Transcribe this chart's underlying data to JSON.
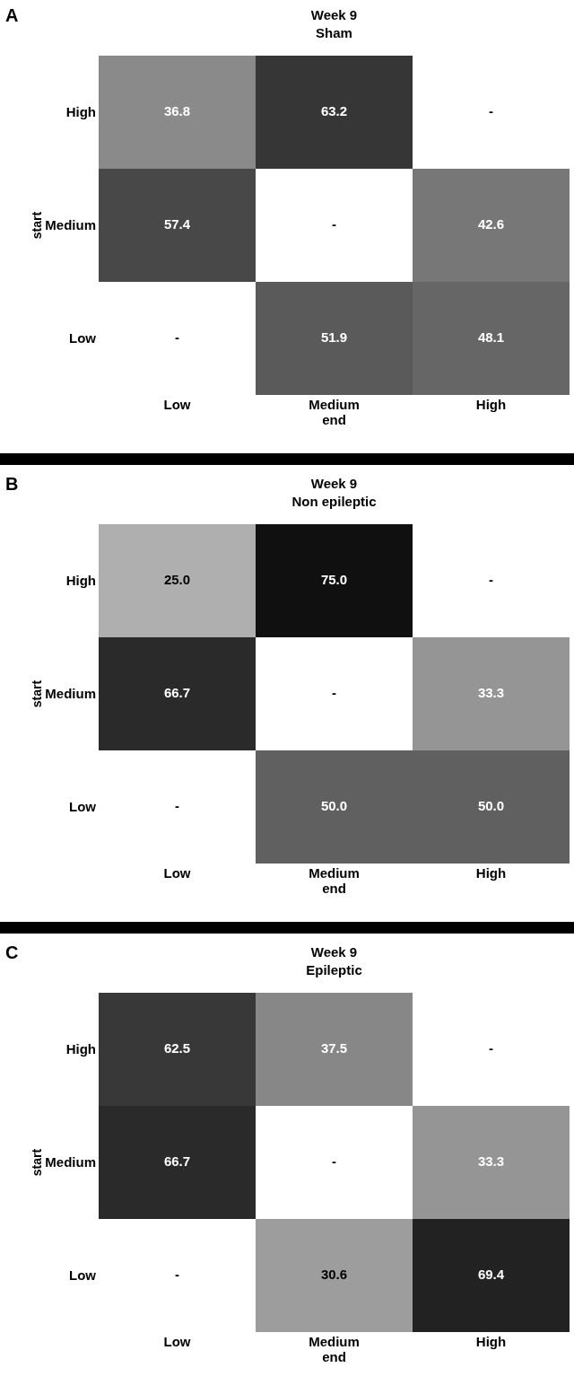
{
  "chart_data": [
    {
      "type": "heatmap",
      "title": "Week 9\nSham",
      "xlabel": "end",
      "ylabel": "start",
      "annotations": [
        "A"
      ],
      "categories": [
        "Low",
        "Medium",
        "High"
      ],
      "y_categories": [
        "High",
        "Medium",
        "Low"
      ],
      "cells": [
        [
          36.8,
          63.2,
          null
        ],
        [
          57.4,
          null,
          42.6
        ],
        [
          null,
          51.9,
          48.1
        ]
      ],
      "cell_labels": [
        [
          "36.8",
          "63.2",
          "-"
        ],
        [
          "57.4",
          "-",
          "42.6"
        ],
        [
          "-",
          "51.9",
          "48.1"
        ]
      ]
    },
    {
      "type": "heatmap",
      "title": "Week 9\nNon epileptic",
      "xlabel": "end",
      "ylabel": "start",
      "annotations": [
        "B"
      ],
      "categories": [
        "Low",
        "Medium",
        "High"
      ],
      "y_categories": [
        "High",
        "Medium",
        "Low"
      ],
      "cells": [
        [
          25.0,
          75.0,
          null
        ],
        [
          66.7,
          null,
          33.3
        ],
        [
          null,
          50.0,
          50.0
        ]
      ],
      "cell_labels": [
        [
          "25.0",
          "75.0",
          "-"
        ],
        [
          "66.7",
          "-",
          "33.3"
        ],
        [
          "-",
          "50.0",
          "50.0"
        ]
      ]
    },
    {
      "type": "heatmap",
      "title": "Week 9\nEpileptic",
      "xlabel": "end",
      "ylabel": "start",
      "annotations": [
        "C"
      ],
      "categories": [
        "Low",
        "Medium",
        "High"
      ],
      "y_categories": [
        "High",
        "Medium",
        "Low"
      ],
      "cells": [
        [
          62.5,
          37.5,
          null
        ],
        [
          66.7,
          null,
          33.3
        ],
        [
          null,
          30.6,
          69.4
        ]
      ],
      "cell_labels": [
        [
          "62.5",
          "37.5",
          "-"
        ],
        [
          "66.7",
          "-",
          "33.3"
        ],
        [
          "-",
          "30.6",
          "69.4"
        ]
      ]
    }
  ]
}
